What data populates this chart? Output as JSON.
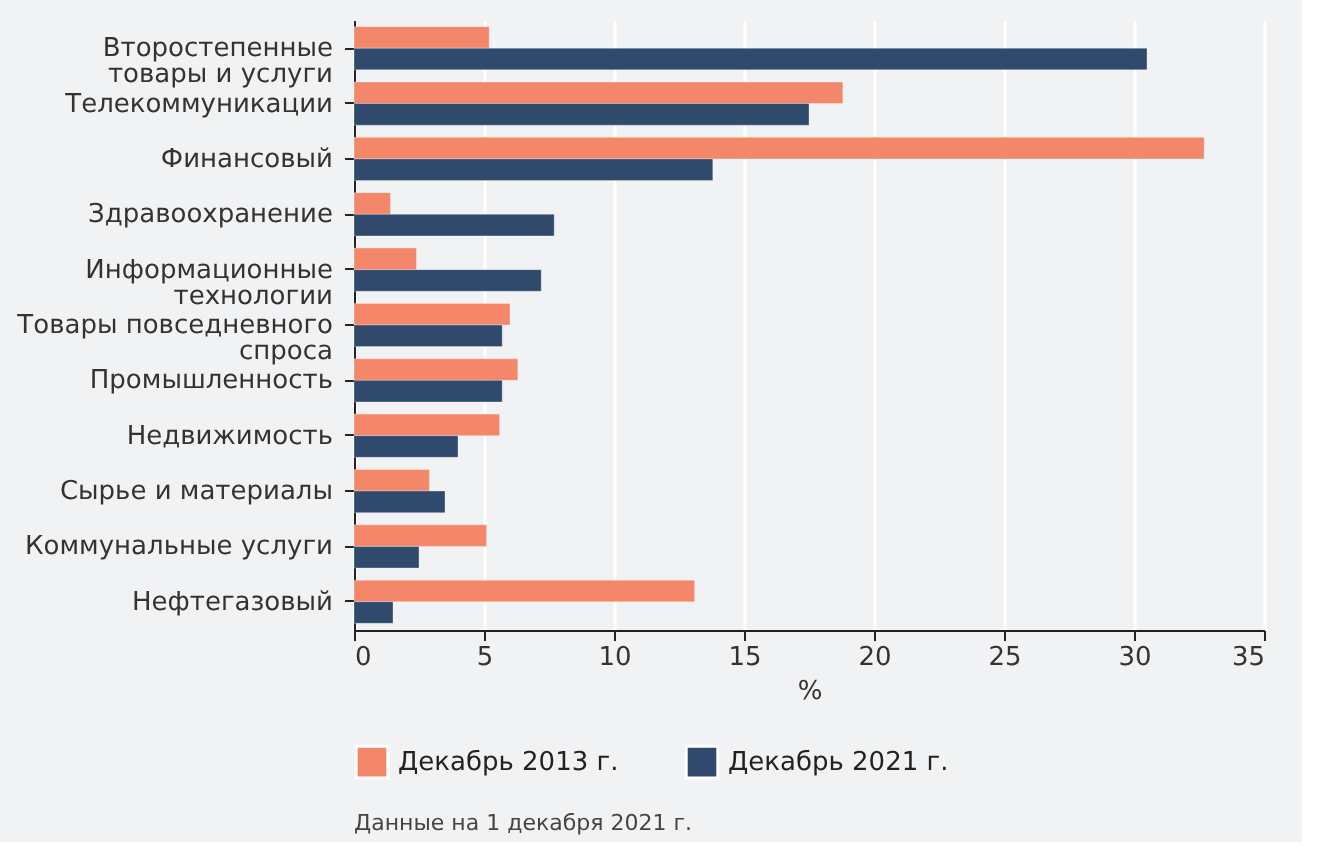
{
  "chart_data": {
    "type": "bar",
    "orientation": "horizontal",
    "categories": [
      "Второстепенные\nтовары и услуги",
      "Телекоммуникации",
      "Финансовый",
      "Здравоохранение",
      "Информационные\nтехнологии",
      "Товары повседневного\nспроса",
      "Промышленность",
      "Недвижимость",
      "Сырье и материалы",
      "Коммунальные услуги",
      "Нефтегазовый"
    ],
    "series": [
      {
        "name": "Декабрь 2013 г.",
        "color": "#f4876a",
        "values": [
          5.2,
          18.8,
          32.7,
          1.4,
          2.4,
          6.0,
          6.3,
          5.6,
          2.9,
          5.1,
          13.1
        ]
      },
      {
        "name": "Декабрь 2021 г.",
        "color": "#2f4a6d",
        "values": [
          30.5,
          17.5,
          13.8,
          7.7,
          7.2,
          5.7,
          5.7,
          4.0,
          3.5,
          2.5,
          1.5
        ]
      }
    ],
    "xlabel": "%",
    "xlim": [
      0,
      35
    ],
    "xticks": [
      0,
      5,
      10,
      15,
      20,
      25,
      30,
      35
    ],
    "grid": "x",
    "legend": "bottom left",
    "annotations": [
      "Данные на 1 декабря 2021 г."
    ]
  }
}
